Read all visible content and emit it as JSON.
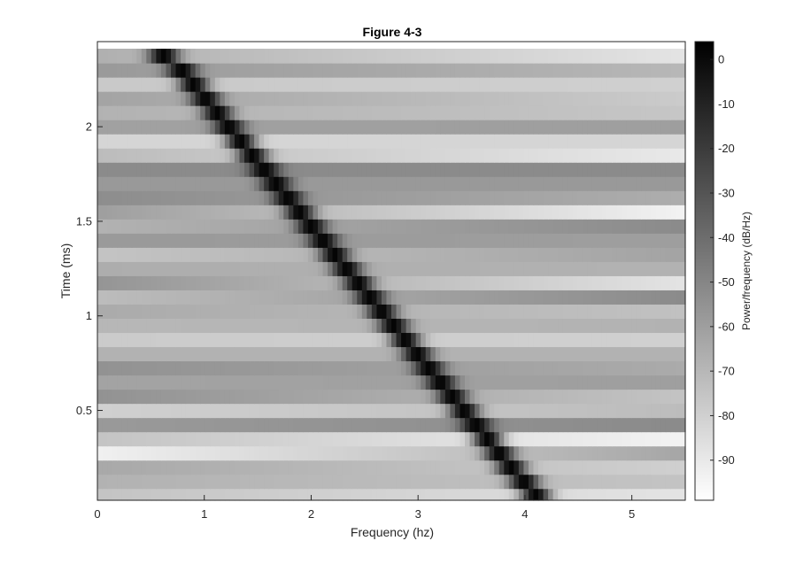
{
  "chart_data": {
    "type": "heatmap",
    "title": "Figure 4-3",
    "xlabel": "Frequency (hz)",
    "ylabel": "Time (ms)",
    "xlim": [
      0,
      5.5
    ],
    "ylim": [
      0.025,
      2.45
    ],
    "x_ticks": [
      0,
      1,
      2,
      3,
      4,
      5
    ],
    "x_tick_labels": [
      "0",
      "1",
      "2",
      "3",
      "4",
      "5"
    ],
    "y_ticks": [
      0.5,
      1,
      1.5,
      2
    ],
    "y_tick_labels": [
      "0.5",
      "1",
      "1.5",
      "2"
    ],
    "colormap": "gray",
    "colorbar": {
      "label": "Power/frequency (dB/Hz)",
      "lim": [
        -99,
        4
      ],
      "ticks": [
        0,
        -10,
        -20,
        -30,
        -40,
        -50,
        -60,
        -70,
        -80,
        -90
      ],
      "tick_labels": [
        "0",
        "-10",
        "-20",
        "-30",
        "-40",
        "-50",
        "-60",
        "-70",
        "-80",
        "-90"
      ]
    },
    "time_bins_ms": [
      0.05,
      0.125,
      0.2,
      0.275,
      0.35,
      0.425,
      0.5,
      0.575,
      0.65,
      0.725,
      0.8,
      0.875,
      0.95,
      1.025,
      1.1,
      1.175,
      1.25,
      1.325,
      1.4,
      1.475,
      1.55,
      1.625,
      1.7,
      1.775,
      1.85,
      1.925,
      2.0,
      2.075,
      2.15,
      2.225,
      2.3,
      2.375
    ],
    "peak_frequency_hz": [
      4.1,
      3.99,
      3.87,
      3.76,
      3.65,
      3.54,
      3.43,
      3.32,
      3.21,
      3.1,
      2.99,
      2.88,
      2.77,
      2.66,
      2.55,
      2.44,
      2.33,
      2.22,
      2.11,
      2.0,
      1.89,
      1.78,
      1.67,
      1.56,
      1.45,
      1.34,
      1.23,
      1.12,
      1.01,
      0.9,
      0.79,
      0.62
    ],
    "peak_db": [
      2,
      2,
      2,
      2,
      2,
      2,
      2,
      2,
      2,
      2,
      2,
      2,
      2,
      2,
      2,
      2,
      2,
      2,
      2,
      2,
      2,
      2,
      2,
      2,
      2,
      2,
      2,
      2,
      2,
      2,
      2,
      2
    ],
    "background_db_low_freq": [
      -75,
      -68,
      -64,
      -93,
      -75,
      -58,
      -80,
      -55,
      -62,
      -55,
      -68,
      -78,
      -70,
      -65,
      -72,
      -56,
      -66,
      -75,
      -58,
      -68,
      -60,
      -53,
      -58,
      -52,
      -72,
      -82,
      -61,
      -68,
      -62,
      -77,
      -58,
      -67
    ],
    "background_db_high_freq": [
      -88,
      -75,
      -80,
      -63,
      -94,
      -52,
      -72,
      -75,
      -60,
      -65,
      -68,
      -80,
      -68,
      -74,
      -52,
      -88,
      -68,
      -62,
      -60,
      -52,
      -94,
      -66,
      -58,
      -52,
      -90,
      -82,
      -60,
      -76,
      -78,
      -80,
      -70,
      -88
    ]
  }
}
